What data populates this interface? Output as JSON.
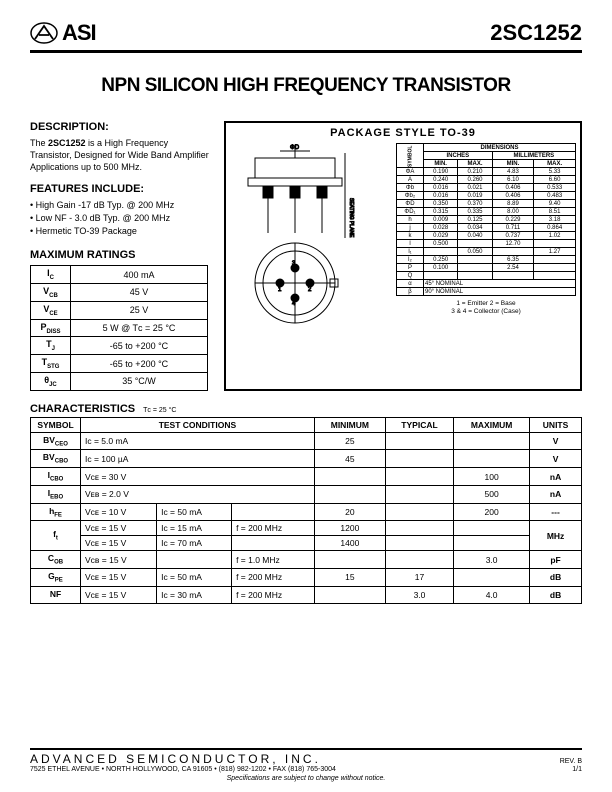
{
  "header": {
    "logo_text": "ASI",
    "part": "2SC1252"
  },
  "title": "NPN SILICON HIGH FREQUENCY TRANSISTOR",
  "description": {
    "head": "DESCRIPTION:",
    "text_pre": "The ",
    "text_bold": "2SC1252",
    "text_post": " is a High Frequency Transistor, Designed for Wide Band Amplifier Applications up to 500 MHz."
  },
  "features": {
    "head": "FEATURES INCLUDE:",
    "items": [
      "High Gain -17 dB Typ. @ 200 MHz",
      "Low NF - 3.0 dB Typ. @ 200 MHz",
      "Hermetic TO-39 Package"
    ]
  },
  "ratings": {
    "head": "MAXIMUM RATINGS",
    "rows": [
      {
        "sym": "I",
        "sub": "C",
        "val": "400 mA"
      },
      {
        "sym": "V",
        "sub": "CB",
        "val": "45 V"
      },
      {
        "sym": "V",
        "sub": "CE",
        "val": "25 V"
      },
      {
        "sym": "P",
        "sub": "DISS",
        "val": "5 W @ Tᴄ = 25 °C"
      },
      {
        "sym": "T",
        "sub": "J",
        "val": "-65 to +200 °C"
      },
      {
        "sym": "T",
        "sub": "STG",
        "val": "-65 to +200 °C"
      },
      {
        "sym": "θ",
        "sub": "JC",
        "val": "35 °C/W"
      }
    ]
  },
  "package": {
    "title": "PACKAGE  STYLE  TO-39",
    "dim_head": "DIMENSIONS",
    "unit1": "INCHES",
    "unit2": "MILLIMETERS",
    "min": "MIN.",
    "max": "MAX.",
    "sym": "SYMBOL",
    "rows": [
      {
        "s": "ΦA",
        "imin": "0.190",
        "imax": "0.210",
        "mmin": "4.83",
        "mmax": "5.33"
      },
      {
        "s": "A",
        "imin": "0.240",
        "imax": "0.260",
        "mmin": "6.10",
        "mmax": "6.60"
      },
      {
        "s": "Φb",
        "imin": "0.016",
        "imax": "0.021",
        "mmin": "0.406",
        "mmax": "0.533"
      },
      {
        "s": "Φb₂",
        "imin": "0.016",
        "imax": "0.019",
        "mmin": "0.406",
        "mmax": "0.483"
      },
      {
        "s": "ΦD",
        "imin": "0.350",
        "imax": "0.370",
        "mmin": "8.89",
        "mmax": "9.40"
      },
      {
        "s": "ΦD₁",
        "imin": "0.315",
        "imax": "0.335",
        "mmin": "8.00",
        "mmax": "8.51"
      },
      {
        "s": "h",
        "imin": "0.009",
        "imax": "0.125",
        "mmin": "0.229",
        "mmax": "3.18"
      },
      {
        "s": "j",
        "imin": "0.028",
        "imax": "0.034",
        "mmin": "0.711",
        "mmax": "0.864"
      },
      {
        "s": "k",
        "imin": "0.029",
        "imax": "0.040",
        "mmin": "0.737",
        "mmax": "1.02"
      },
      {
        "s": "l",
        "imin": "0.500",
        "imax": "",
        "mmin": "12.70",
        "mmax": ""
      },
      {
        "s": "l₁",
        "imin": "",
        "imax": "0.050",
        "mmin": "",
        "mmax": "1.27"
      },
      {
        "s": "l₂",
        "imin": "0.250",
        "imax": "",
        "mmin": "6.35",
        "mmax": ""
      },
      {
        "s": "P",
        "imin": "0.100",
        "imax": "",
        "mmin": "2.54",
        "mmax": ""
      },
      {
        "s": "Q",
        "imin": "",
        "imax": "",
        "mmin": "",
        "mmax": ""
      },
      {
        "s": "α",
        "imin": "45° NOMINAL",
        "imax": "",
        "mmin": "",
        "mmax": ""
      },
      {
        "s": "β",
        "imin": "90° NOMINAL",
        "imax": "",
        "mmin": "",
        "mmax": ""
      }
    ],
    "legend1": "1 = Emitter    2 = Base",
    "legend2": "3 & 4 = Collector (Case)"
  },
  "chars": {
    "head": "CHARACTERISTICS",
    "sub": "Tᴄ = 25 °C",
    "cols": [
      "SYMBOL",
      "TEST CONDITIONS",
      "MINIMUM",
      "TYPICAL",
      "MAXIMUM",
      "UNITS"
    ],
    "rows": [
      {
        "sym": "BV",
        "symsub": "CEO",
        "cond": [
          "Iᴄ = 5.0 mA"
        ],
        "min": "25",
        "typ": "",
        "max": "",
        "unit": "V"
      },
      {
        "sym": "BV",
        "symsub": "CBO",
        "cond": [
          "Iᴄ = 100 µA"
        ],
        "min": "45",
        "typ": "",
        "max": "",
        "unit": "V"
      },
      {
        "sym": "I",
        "symsub": "CBO",
        "cond": [
          "Vᴄᴇ = 30 V"
        ],
        "min": "",
        "typ": "",
        "max": "100",
        "unit": "nA"
      },
      {
        "sym": "I",
        "symsub": "EBO",
        "cond": [
          "Vᴇʙ = 2.0 V"
        ],
        "min": "",
        "typ": "",
        "max": "500",
        "unit": "nA"
      },
      {
        "sym": "h",
        "symsub": "FE",
        "cond": [
          "Vᴄᴇ = 10 V",
          "Iᴄ = 50 mA"
        ],
        "min": "20",
        "typ": "",
        "max": "200",
        "unit": "---"
      }
    ],
    "ft": {
      "sym": "f",
      "symsub": "t",
      "r1": [
        "Vᴄᴇ = 15 V",
        "Iᴄ = 15 mA",
        "f = 200 MHz"
      ],
      "r1min": "1200",
      "r2": [
        "Vᴄᴇ = 15 V",
        "Iᴄ = 70 mA",
        ""
      ],
      "r2min": "1400",
      "unit": "MHz"
    },
    "rows2": [
      {
        "sym": "C",
        "symsub": "OB",
        "cond": [
          "Vᴄʙ = 15 V",
          "",
          "f = 1.0 MHz"
        ],
        "min": "",
        "typ": "",
        "max": "3.0",
        "unit": "pF"
      },
      {
        "sym": "G",
        "symsub": "PE",
        "cond": [
          "Vᴄᴇ = 15 V",
          "Iᴄ = 50 mA",
          "f = 200 MHz"
        ],
        "min": "15",
        "typ": "17",
        "max": "",
        "unit": "dB"
      },
      {
        "sym": "NF",
        "symsub": "",
        "cond": [
          "Vᴄᴇ = 15 V",
          "Iᴄ = 30 mA",
          "f = 200 MHz"
        ],
        "min": "",
        "typ": "3.0",
        "max": "4.0",
        "unit": "dB"
      }
    ]
  },
  "footer": {
    "company": "ADVANCED SEMICONDUCTOR, INC.",
    "rev": "REV. B",
    "addr": "7525 ETHEL AVENUE • NORTH HOLLYWOOD, CA 91605 • (818) 982-1202 • FAX (818) 765-3004",
    "page": "1/1",
    "disclaimer": "Specifications are subject to change without notice."
  }
}
